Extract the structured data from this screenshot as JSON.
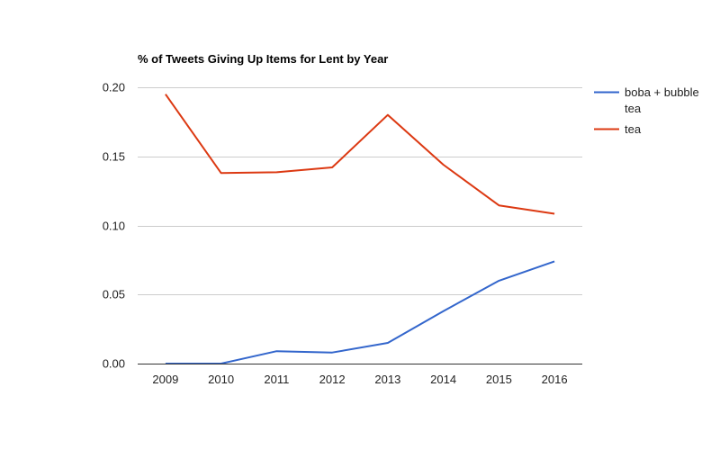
{
  "chart_data": {
    "type": "line",
    "title": "% of Tweets Giving Up Items for Lent by Year",
    "xlabel": "",
    "ylabel": "",
    "categories": [
      "2009",
      "2010",
      "2011",
      "2012",
      "2013",
      "2014",
      "2015",
      "2016"
    ],
    "ylim": [
      0,
      0.2
    ],
    "yticks": [
      "0.00",
      "0.05",
      "0.10",
      "0.15",
      "0.20"
    ],
    "grid": true,
    "legend_position": "right",
    "series": [
      {
        "name": "boba + bubble tea",
        "name_lines": [
          "boba + bubble",
          "tea"
        ],
        "color": "#3366cc",
        "values": [
          0.0,
          0.0,
          0.009,
          0.008,
          0.015,
          0.038,
          0.06,
          0.074
        ]
      },
      {
        "name": "tea",
        "name_lines": [
          "tea"
        ],
        "color": "#dc3912",
        "values": [
          0.195,
          0.138,
          0.1385,
          0.142,
          0.18,
          0.144,
          0.1145,
          0.1085
        ]
      }
    ]
  }
}
